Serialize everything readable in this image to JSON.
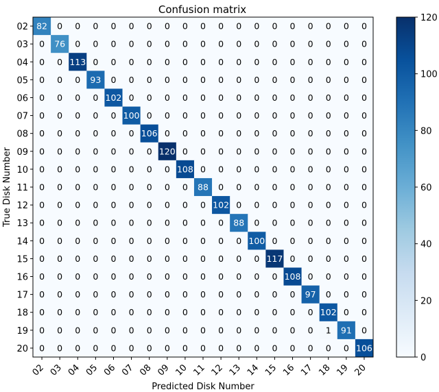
{
  "chart_data": {
    "type": "heatmap",
    "title": "Confusion matrix",
    "xlabel": "Predicted Disk Number",
    "ylabel": "True Disk Number",
    "x_categories": [
      "02",
      "03",
      "04",
      "05",
      "06",
      "07",
      "08",
      "09",
      "10",
      "11",
      "12",
      "13",
      "14",
      "15",
      "16",
      "17",
      "18",
      "19",
      "20"
    ],
    "y_categories": [
      "02",
      "03",
      "04",
      "05",
      "06",
      "07",
      "08",
      "09",
      "10",
      "11",
      "12",
      "13",
      "14",
      "15",
      "16",
      "17",
      "18",
      "19",
      "20"
    ],
    "matrix": [
      [
        82,
        0,
        0,
        0,
        0,
        0,
        0,
        0,
        0,
        0,
        0,
        0,
        0,
        0,
        0,
        0,
        0,
        0,
        0
      ],
      [
        0,
        76,
        0,
        0,
        0,
        0,
        0,
        0,
        0,
        0,
        0,
        0,
        0,
        0,
        0,
        0,
        0,
        0,
        0
      ],
      [
        0,
        0,
        113,
        0,
        0,
        0,
        0,
        0,
        0,
        0,
        0,
        0,
        0,
        0,
        0,
        0,
        0,
        0,
        0
      ],
      [
        0,
        0,
        0,
        93,
        0,
        0,
        0,
        0,
        0,
        0,
        0,
        0,
        0,
        0,
        0,
        0,
        0,
        0,
        0
      ],
      [
        0,
        0,
        0,
        0,
        102,
        0,
        0,
        0,
        0,
        0,
        0,
        0,
        0,
        0,
        0,
        0,
        0,
        0,
        0
      ],
      [
        0,
        0,
        0,
        0,
        0,
        100,
        0,
        0,
        0,
        0,
        0,
        0,
        0,
        0,
        0,
        0,
        0,
        0,
        0
      ],
      [
        0,
        0,
        0,
        0,
        0,
        0,
        106,
        0,
        0,
        0,
        0,
        0,
        0,
        0,
        0,
        0,
        0,
        0,
        0
      ],
      [
        0,
        0,
        0,
        0,
        0,
        0,
        0,
        120,
        0,
        0,
        0,
        0,
        0,
        0,
        0,
        0,
        0,
        0,
        0
      ],
      [
        0,
        0,
        0,
        0,
        0,
        0,
        0,
        0,
        108,
        0,
        0,
        0,
        0,
        0,
        0,
        0,
        0,
        0,
        0
      ],
      [
        0,
        0,
        0,
        0,
        0,
        0,
        0,
        0,
        0,
        88,
        0,
        0,
        0,
        0,
        0,
        0,
        0,
        0,
        0
      ],
      [
        0,
        0,
        0,
        0,
        0,
        0,
        0,
        0,
        0,
        0,
        102,
        0,
        0,
        0,
        0,
        0,
        0,
        0,
        0
      ],
      [
        0,
        0,
        0,
        0,
        0,
        0,
        0,
        0,
        0,
        0,
        0,
        88,
        0,
        0,
        0,
        0,
        0,
        0,
        0
      ],
      [
        0,
        0,
        0,
        0,
        0,
        0,
        0,
        0,
        0,
        0,
        0,
        0,
        100,
        0,
        0,
        0,
        0,
        0,
        0
      ],
      [
        0,
        0,
        0,
        0,
        0,
        0,
        0,
        0,
        0,
        0,
        0,
        0,
        0,
        117,
        0,
        0,
        0,
        0,
        0
      ],
      [
        0,
        0,
        0,
        0,
        0,
        0,
        0,
        0,
        0,
        0,
        0,
        0,
        0,
        0,
        108,
        0,
        0,
        0,
        0
      ],
      [
        0,
        0,
        0,
        0,
        0,
        0,
        0,
        0,
        0,
        0,
        0,
        0,
        0,
        0,
        0,
        97,
        0,
        0,
        0
      ],
      [
        0,
        0,
        0,
        0,
        0,
        0,
        0,
        0,
        0,
        0,
        0,
        0,
        0,
        0,
        0,
        0,
        102,
        0,
        0
      ],
      [
        0,
        0,
        0,
        0,
        0,
        0,
        0,
        0,
        0,
        0,
        0,
        0,
        0,
        0,
        0,
        0,
        1,
        91,
        0
      ],
      [
        0,
        0,
        0,
        0,
        0,
        0,
        0,
        0,
        0,
        0,
        0,
        0,
        0,
        0,
        0,
        0,
        0,
        0,
        106
      ]
    ],
    "colorbar": {
      "range": [
        0,
        120
      ],
      "ticks": [
        0,
        20,
        40,
        60,
        80,
        100,
        120
      ],
      "colormap": "Blues",
      "low_color": "#f7fbff",
      "high_color": "#08306b"
    },
    "cell_text_dark_color": "#000000",
    "cell_text_light_color": "#ffffff"
  }
}
